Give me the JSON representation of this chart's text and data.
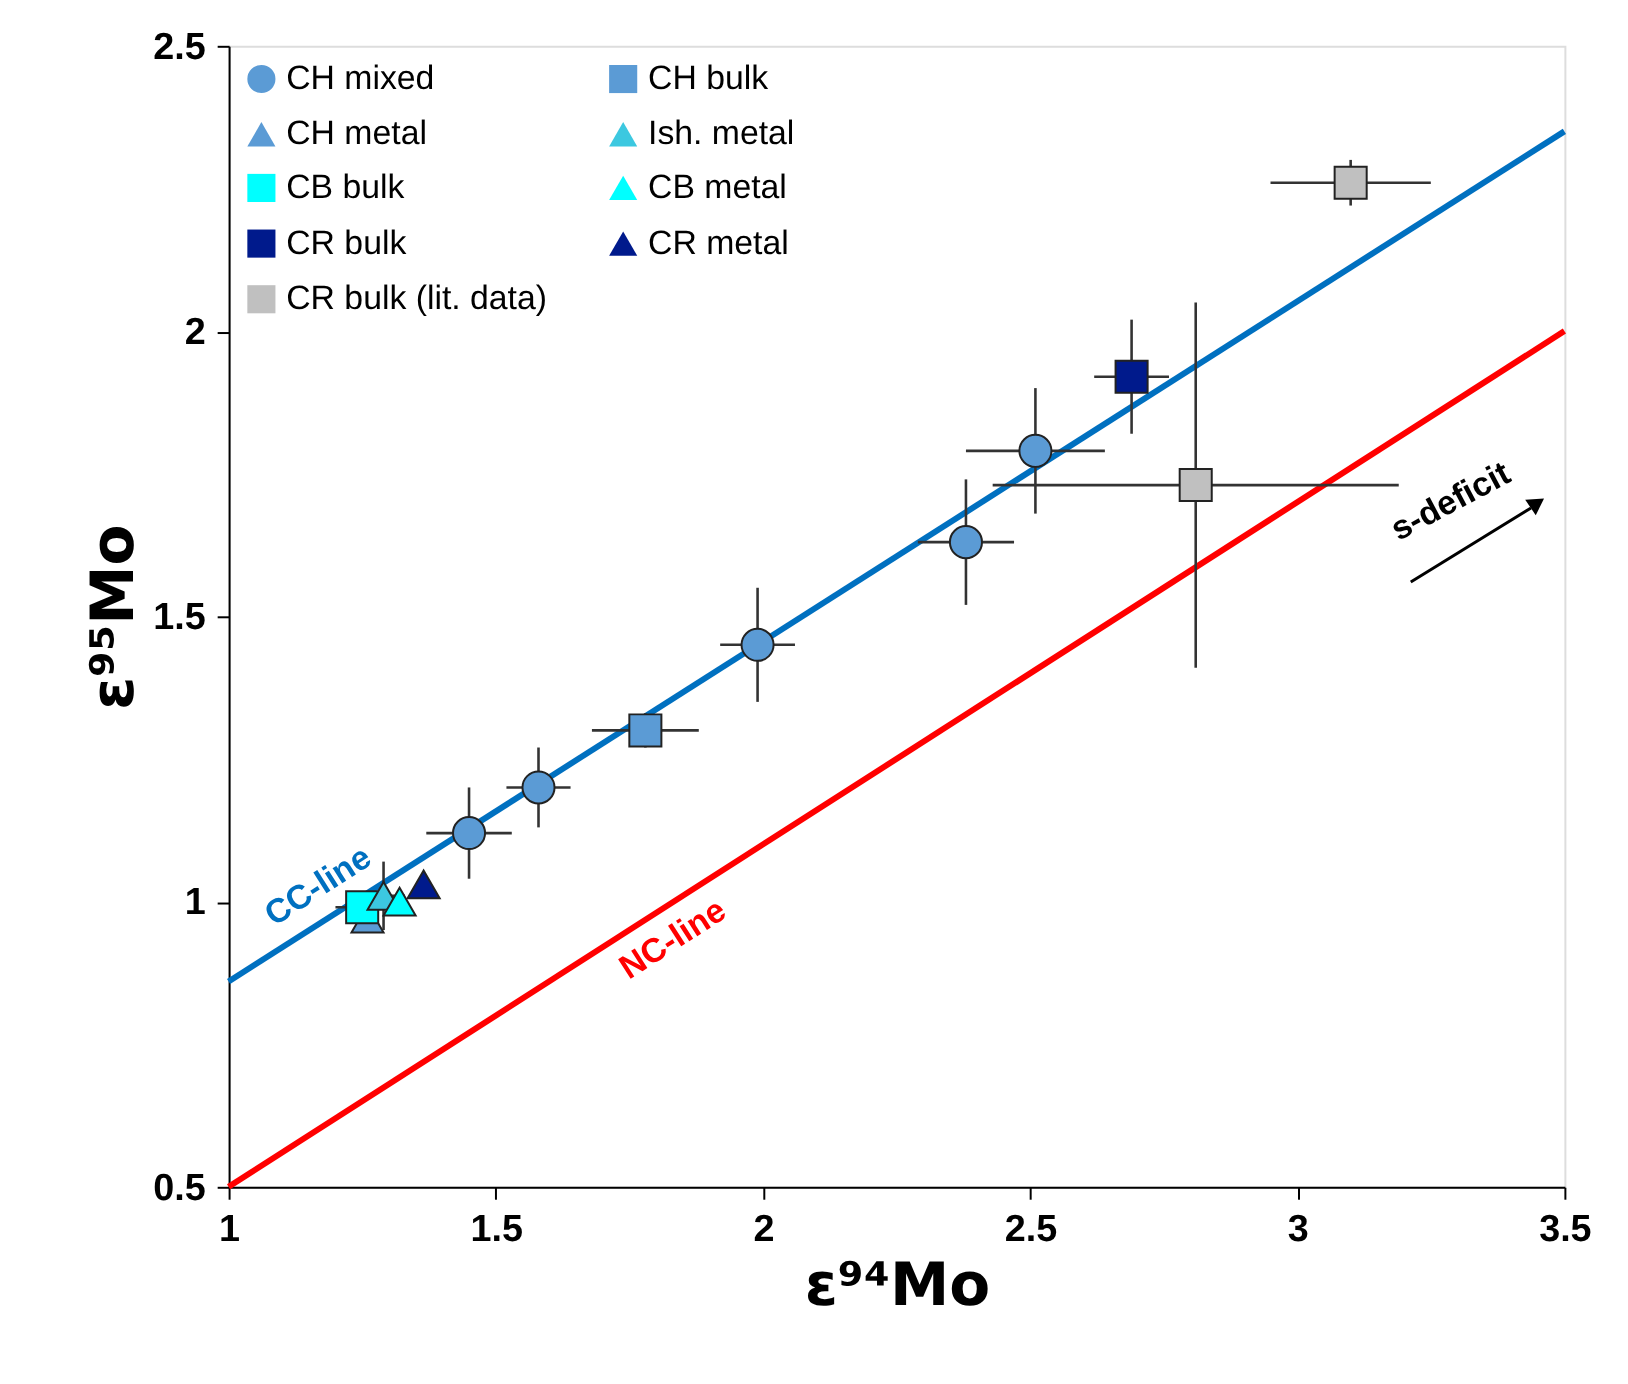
{
  "chart_data": {
    "type": "scatter",
    "xlabel": "ε⁹⁴Mo",
    "ylabel": "ε⁹⁵Mo",
    "xlim": [
      1,
      3.5
    ],
    "ylim": [
      0.5,
      2.5
    ],
    "xticks": [
      1,
      1.5,
      2,
      2.5,
      3,
      3.5
    ],
    "yticks": [
      0.5,
      1,
      1.5,
      2,
      2.5
    ],
    "grid": false,
    "legend": "top left",
    "series": [
      {
        "name": "CC-line",
        "type": "line",
        "color": "#0070c0",
        "x": [
          1,
          3.5
        ],
        "values": [
          0.86,
          2.35
        ]
      },
      {
        "name": "NC-line",
        "type": "line",
        "color": "#ff0000",
        "x": [
          1,
          3.5
        ],
        "values": [
          0.5,
          2.0
        ]
      },
      {
        "name": "CH mixed",
        "marker": "circle",
        "color": "#5b9bd5",
        "x": [
          1.45,
          1.58,
          1.99,
          2.38,
          2.51
        ],
        "values": [
          1.12,
          1.2,
          1.45,
          1.63,
          1.79
        ],
        "xerrors": [
          0.08,
          0.06,
          0.07,
          0.09,
          0.13
        ],
        "errors": [
          0.08,
          0.07,
          0.1,
          0.11,
          0.11
        ]
      },
      {
        "name": "CH metal",
        "marker": "triangle",
        "color": "#5b9bd5",
        "x": [
          1.26
        ],
        "values": [
          0.97
        ]
      },
      {
        "name": "CB bulk",
        "marker": "square",
        "color": "#00ffff",
        "x": [
          1.25
        ],
        "values": [
          0.99
        ],
        "xerrors": [
          0.05
        ],
        "errors": [
          0.02
        ]
      },
      {
        "name": "CR bulk",
        "marker": "square",
        "color": "#001a8c",
        "x": [
          2.69
        ],
        "values": [
          1.92
        ],
        "xerrors": [
          0.07
        ],
        "errors": [
          0.1
        ]
      },
      {
        "name": "CR bulk (lit. data)",
        "marker": "square",
        "color": "#c0c0c0",
        "x": [
          2.81,
          3.1
        ],
        "values": [
          1.73,
          2.26
        ],
        "xerrors": [
          0.38,
          0.15
        ],
        "errors": [
          0.32,
          0.04
        ]
      },
      {
        "name": "CH bulk",
        "marker": "square",
        "color": "#5b9bd5",
        "x": [
          1.78
        ],
        "values": [
          1.3
        ],
        "xerrors": [
          0.1
        ],
        "errors": [
          0.03
        ]
      },
      {
        "name": "Ish. metal",
        "marker": "triangle",
        "color": "#3cc8e0",
        "x": [
          1.29
        ],
        "values": [
          1.01
        ],
        "xerrors": [
          0.04
        ],
        "errors": [
          0.06
        ]
      },
      {
        "name": "CB metal",
        "marker": "triangle",
        "color": "#00ffff",
        "x": [
          1.32
        ],
        "values": [
          1.0
        ]
      },
      {
        "name": "CR metal",
        "marker": "triangle",
        "color": "#001a8c",
        "x": [
          1.365
        ],
        "values": [
          1.03
        ]
      }
    ],
    "annotations": [
      "s-deficit"
    ]
  }
}
